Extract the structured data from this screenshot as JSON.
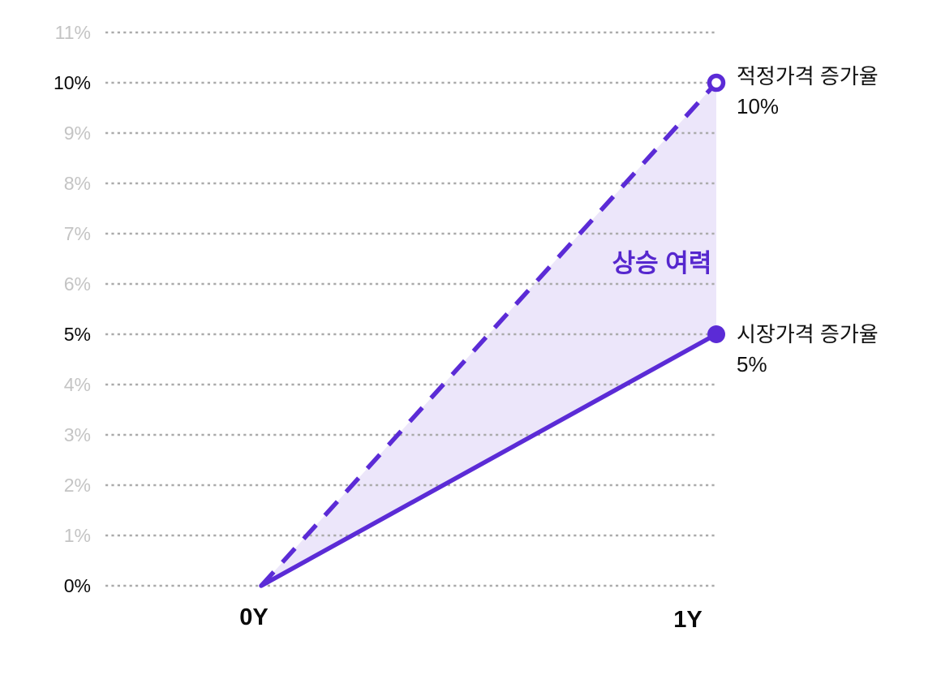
{
  "chart_data": {
    "type": "line",
    "title": "",
    "x_categories": [
      "0Y",
      "1Y"
    ],
    "yticks": [
      0,
      1,
      2,
      3,
      4,
      5,
      6,
      7,
      8,
      9,
      10,
      11
    ],
    "ytick_suffix": "%",
    "emphasized_yticks": [
      0,
      5,
      10
    ],
    "ylim": [
      0,
      11.7
    ],
    "grid": "dotted horizontal",
    "legend_position": "right of end markers",
    "series": [
      {
        "name": "적정가격 증가율",
        "values": [
          0,
          10
        ],
        "style": "dashed",
        "marker": "open-circle",
        "label": "적정가격 증가율",
        "label_value": "10%"
      },
      {
        "name": "시장가격 증가율",
        "values": [
          0,
          5
        ],
        "style": "solid",
        "marker": "filled-circle",
        "label": "시장가격 증가율",
        "label_value": "5%"
      }
    ],
    "annotation": "상승 여력",
    "colors": {
      "line": "#5B2BD6",
      "area": "#ECE6FA",
      "grid": "#ABABAB",
      "tick_muted": "#C4C4C4",
      "tick_emphasis": "#0A0A0A",
      "annotation": "#5627CE",
      "marker_open_fill": "#FFFFFF"
    }
  }
}
